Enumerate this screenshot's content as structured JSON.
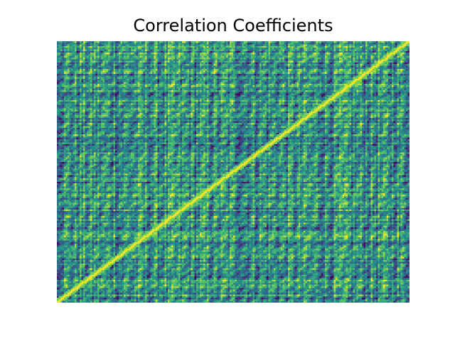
{
  "chart_data": {
    "type": "heatmap",
    "title": "Correlation Coefficients",
    "xlabel": "",
    "ylabel": "",
    "axes_visible": false,
    "grid": false,
    "legend": "none",
    "colormap": "viridis",
    "value_range": [
      -1,
      1
    ],
    "rows": 160,
    "cols": 200,
    "diagonal": "high correlation ~1.0 running from bottom-left toward top-right",
    "colors": {
      "low": "#440154",
      "mid_low": "#31688e",
      "mid": "#21918c",
      "mid_high": "#35b779",
      "high": "#fde725"
    }
  }
}
